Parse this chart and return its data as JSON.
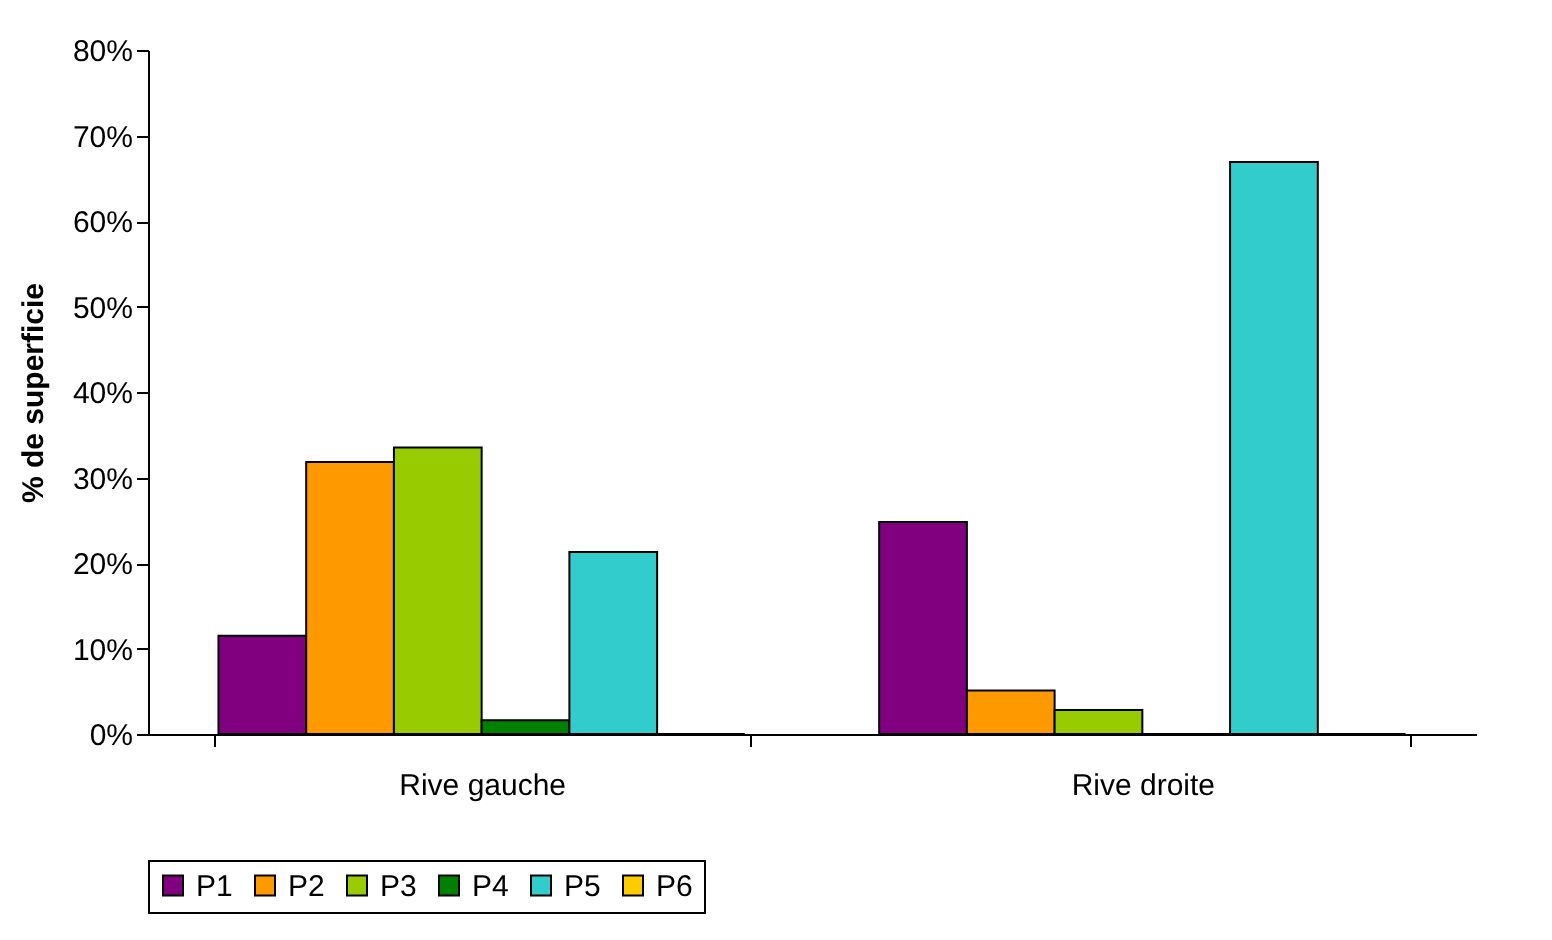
{
  "chart_data": {
    "type": "bar",
    "ylabel": "% de superficie",
    "categories": [
      "Rive gauche",
      "Rive droite"
    ],
    "series": [
      {
        "name": "P1",
        "color": "#800080",
        "values": [
          11.5,
          24.8
        ]
      },
      {
        "name": "P2",
        "color": "#ff9900",
        "values": [
          31.8,
          5.1
        ]
      },
      {
        "name": "P3",
        "color": "#99cc00",
        "values": [
          33.5,
          2.8
        ]
      },
      {
        "name": "P4",
        "color": "#008000",
        "values": [
          1.6,
          0
        ]
      },
      {
        "name": "P5",
        "color": "#33cccc",
        "values": [
          21.3,
          66.9
        ]
      },
      {
        "name": "P6",
        "color": "#ffcc00",
        "values": [
          0,
          0
        ]
      }
    ],
    "ylim": [
      0,
      80
    ],
    "yticks": [
      {
        "value": 0,
        "label": "0%"
      },
      {
        "value": 10,
        "label": "10%"
      },
      {
        "value": 20,
        "label": "20%"
      },
      {
        "value": 30,
        "label": "30%"
      },
      {
        "value": 40,
        "label": "40%"
      },
      {
        "value": 50,
        "label": "50%"
      },
      {
        "value": 60,
        "label": "60%"
      },
      {
        "value": 70,
        "label": "70%"
      },
      {
        "value": 80,
        "label": "80%"
      }
    ],
    "legend": "bottom",
    "grid": false
  }
}
